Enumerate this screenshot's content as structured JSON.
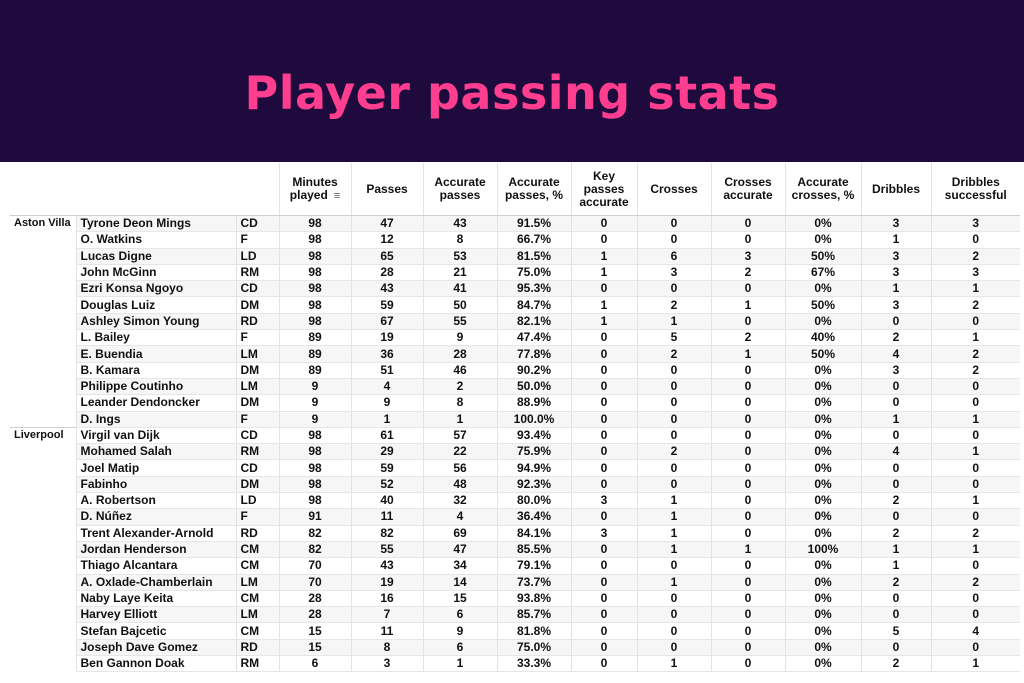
{
  "title": "Player passing stats",
  "chart_data": {
    "type": "table",
    "title": "Player passing stats",
    "columns": [
      "Minutes played",
      "Passes",
      "Accurate passes",
      "Accurate passes, %",
      "Key passes accurate",
      "Crosses",
      "Crosses accurate",
      "Accurate crosses, %",
      "Dribbles",
      "Dribbles successful"
    ],
    "sort_indicator": "≡",
    "teams": [
      {
        "name": "Aston Villa",
        "players": [
          {
            "name": "Tyrone Deon Mings",
            "pos": "CD",
            "stats": [
              "98",
              "47",
              "43",
              "91.5%",
              "0",
              "0",
              "0",
              "0%",
              "3",
              "3"
            ]
          },
          {
            "name": "O. Watkins",
            "pos": "F",
            "stats": [
              "98",
              "12",
              "8",
              "66.7%",
              "0",
              "0",
              "0",
              "0%",
              "1",
              "0"
            ]
          },
          {
            "name": "Lucas Digne",
            "pos": "LD",
            "stats": [
              "98",
              "65",
              "53",
              "81.5%",
              "1",
              "6",
              "3",
              "50%",
              "3",
              "2"
            ]
          },
          {
            "name": "John McGinn",
            "pos": "RM",
            "stats": [
              "98",
              "28",
              "21",
              "75.0%",
              "1",
              "3",
              "2",
              "67%",
              "3",
              "3"
            ]
          },
          {
            "name": "Ezri Konsa Ngoyo",
            "pos": "CD",
            "stats": [
              "98",
              "43",
              "41",
              "95.3%",
              "0",
              "0",
              "0",
              "0%",
              "1",
              "1"
            ]
          },
          {
            "name": "Douglas Luiz",
            "pos": "DM",
            "stats": [
              "98",
              "59",
              "50",
              "84.7%",
              "1",
              "2",
              "1",
              "50%",
              "3",
              "2"
            ]
          },
          {
            "name": "Ashley Simon Young",
            "pos": "RD",
            "stats": [
              "98",
              "67",
              "55",
              "82.1%",
              "1",
              "1",
              "0",
              "0%",
              "0",
              "0"
            ]
          },
          {
            "name": "L. Bailey",
            "pos": "F",
            "stats": [
              "89",
              "19",
              "9",
              "47.4%",
              "0",
              "5",
              "2",
              "40%",
              "2",
              "1"
            ]
          },
          {
            "name": "E. Buendia",
            "pos": "LM",
            "stats": [
              "89",
              "36",
              "28",
              "77.8%",
              "0",
              "2",
              "1",
              "50%",
              "4",
              "2"
            ]
          },
          {
            "name": "B. Kamara",
            "pos": "DM",
            "stats": [
              "89",
              "51",
              "46",
              "90.2%",
              "0",
              "0",
              "0",
              "0%",
              "3",
              "2"
            ]
          },
          {
            "name": "Philippe Coutinho",
            "pos": "LM",
            "stats": [
              "9",
              "4",
              "2",
              "50.0%",
              "0",
              "0",
              "0",
              "0%",
              "0",
              "0"
            ]
          },
          {
            "name": "Leander Dendoncker",
            "pos": "DM",
            "stats": [
              "9",
              "9",
              "8",
              "88.9%",
              "0",
              "0",
              "0",
              "0%",
              "0",
              "0"
            ]
          },
          {
            "name": "D. Ings",
            "pos": "F",
            "stats": [
              "9",
              "1",
              "1",
              "100.0%",
              "0",
              "0",
              "0",
              "0%",
              "1",
              "1"
            ]
          }
        ]
      },
      {
        "name": "Liverpool",
        "players": [
          {
            "name": "Virgil van Dijk",
            "pos": "CD",
            "stats": [
              "98",
              "61",
              "57",
              "93.4%",
              "0",
              "0",
              "0",
              "0%",
              "0",
              "0"
            ]
          },
          {
            "name": "Mohamed Salah",
            "pos": "RM",
            "stats": [
              "98",
              "29",
              "22",
              "75.9%",
              "0",
              "2",
              "0",
              "0%",
              "4",
              "1"
            ]
          },
          {
            "name": "Joel Matip",
            "pos": "CD",
            "stats": [
              "98",
              "59",
              "56",
              "94.9%",
              "0",
              "0",
              "0",
              "0%",
              "0",
              "0"
            ]
          },
          {
            "name": "Fabinho",
            "pos": "DM",
            "stats": [
              "98",
              "52",
              "48",
              "92.3%",
              "0",
              "0",
              "0",
              "0%",
              "0",
              "0"
            ]
          },
          {
            "name": "A. Robertson",
            "pos": "LD",
            "stats": [
              "98",
              "40",
              "32",
              "80.0%",
              "3",
              "1",
              "0",
              "0%",
              "2",
              "1"
            ]
          },
          {
            "name": "D. Núñez",
            "pos": "F",
            "stats": [
              "91",
              "11",
              "4",
              "36.4%",
              "0",
              "1",
              "0",
              "0%",
              "0",
              "0"
            ]
          },
          {
            "name": "Trent Alexander-Arnold",
            "pos": "RD",
            "stats": [
              "82",
              "82",
              "69",
              "84.1%",
              "3",
              "1",
              "0",
              "0%",
              "2",
              "2"
            ]
          },
          {
            "name": "Jordan Henderson",
            "pos": "CM",
            "stats": [
              "82",
              "55",
              "47",
              "85.5%",
              "0",
              "1",
              "1",
              "100%",
              "1",
              "1"
            ]
          },
          {
            "name": "Thiago Alcantara",
            "pos": "CM",
            "stats": [
              "70",
              "43",
              "34",
              "79.1%",
              "0",
              "0",
              "0",
              "0%",
              "1",
              "0"
            ]
          },
          {
            "name": "A. Oxlade-Chamberlain",
            "pos": "LM",
            "stats": [
              "70",
              "19",
              "14",
              "73.7%",
              "0",
              "1",
              "0",
              "0%",
              "2",
              "2"
            ]
          },
          {
            "name": "Naby Laye Keita",
            "pos": "CM",
            "stats": [
              "28",
              "16",
              "15",
              "93.8%",
              "0",
              "0",
              "0",
              "0%",
              "0",
              "0"
            ]
          },
          {
            "name": "Harvey Elliott",
            "pos": "LM",
            "stats": [
              "28",
              "7",
              "6",
              "85.7%",
              "0",
              "0",
              "0",
              "0%",
              "0",
              "0"
            ]
          },
          {
            "name": "Stefan Bajcetic",
            "pos": "CM",
            "stats": [
              "15",
              "11",
              "9",
              "81.8%",
              "0",
              "0",
              "0",
              "0%",
              "5",
              "4"
            ]
          },
          {
            "name": "Joseph Dave Gomez",
            "pos": "RD",
            "stats": [
              "15",
              "8",
              "6",
              "75.0%",
              "0",
              "0",
              "0",
              "0%",
              "0",
              "0"
            ]
          },
          {
            "name": "Ben Gannon Doak",
            "pos": "RM",
            "stats": [
              "6",
              "3",
              "1",
              "33.3%",
              "0",
              "1",
              "0",
              "0%",
              "2",
              "1"
            ]
          }
        ]
      }
    ]
  }
}
